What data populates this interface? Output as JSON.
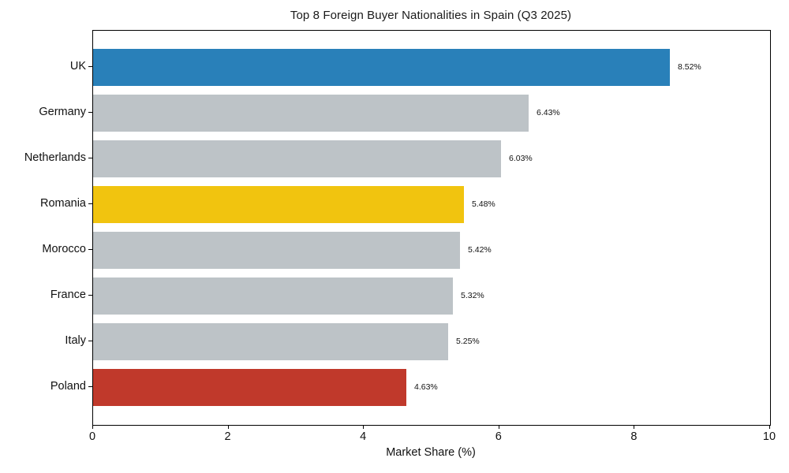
{
  "chart_data": {
    "type": "bar",
    "orientation": "horizontal",
    "title": "Top 8 Foreign Buyer Nationalities in Spain (Q3 2025)",
    "xlabel": "Market Share (%)",
    "ylabel": "",
    "categories": [
      "UK",
      "Germany",
      "Netherlands",
      "Romania",
      "Morocco",
      "France",
      "Italy",
      "Poland"
    ],
    "values": [
      8.52,
      6.43,
      6.03,
      5.48,
      5.42,
      5.32,
      5.25,
      4.63
    ],
    "value_labels": [
      "8.52%",
      "6.43%",
      "6.03%",
      "5.48%",
      "5.42%",
      "5.32%",
      "5.25%",
      "4.63%"
    ],
    "bar_colors": [
      "#2980b9",
      "#bdc3c7",
      "#bdc3c7",
      "#f1c40f",
      "#bdc3c7",
      "#bdc3c7",
      "#bdc3c7",
      "#c0392b"
    ],
    "xlim": [
      0,
      10
    ],
    "x_ticks": [
      0,
      2,
      4,
      6,
      8,
      10
    ],
    "x_tick_labels": [
      "0",
      "2",
      "4",
      "6",
      "8",
      "10"
    ],
    "grid": false,
    "legend": null,
    "colors": {
      "highlight_primary": "#2980b9",
      "highlight_secondary": "#f1c40f",
      "highlight_tertiary": "#c0392b",
      "neutral": "#bdc3c7",
      "axis": "#000000",
      "text": "#111111",
      "background": "#ffffff"
    }
  }
}
